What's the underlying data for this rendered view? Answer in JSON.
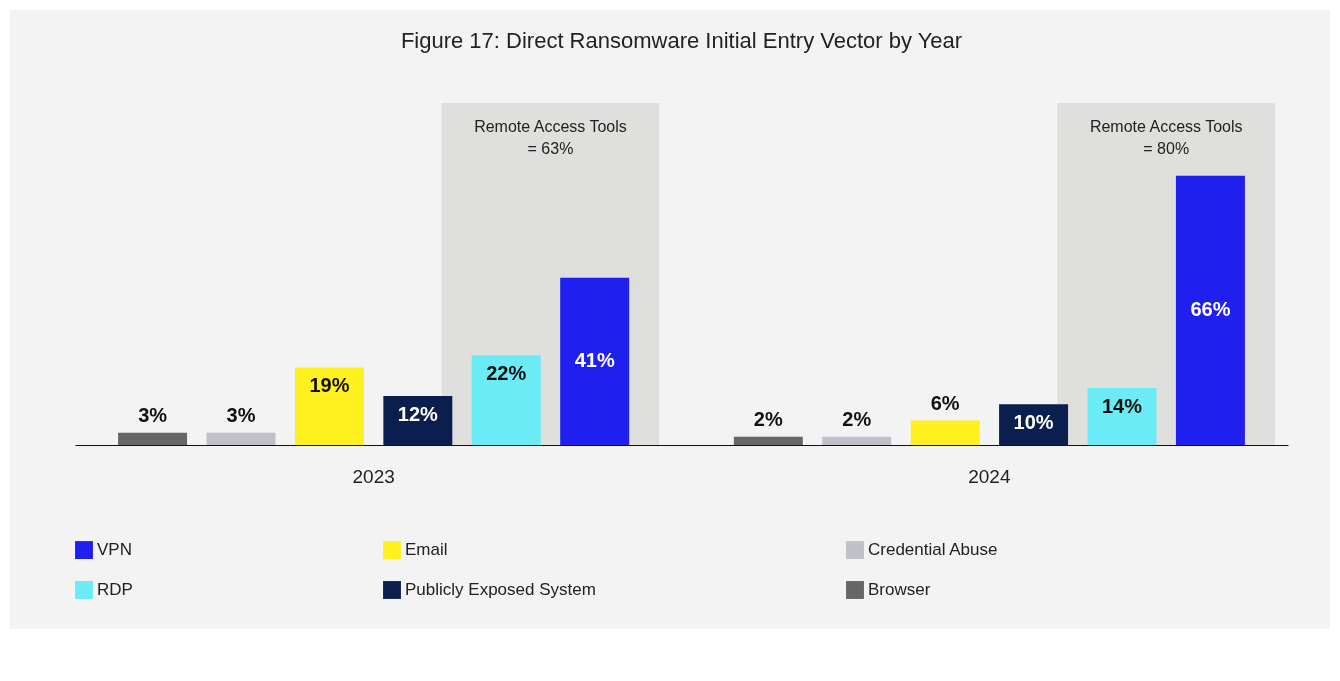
{
  "chart_data": {
    "type": "bar",
    "title": "Figure 17: Direct Ransomware Initial Entry Vector by Year",
    "categories": [
      "2023",
      "2024"
    ],
    "series": [
      {
        "name": "Browser",
        "color": "#666666",
        "values": [
          3,
          2
        ],
        "value_labels": [
          "3%",
          "2%"
        ]
      },
      {
        "name": "Credential Abuse",
        "color": "#c0c0c8",
        "values": [
          3,
          2
        ],
        "value_labels": [
          "3%",
          "2%"
        ]
      },
      {
        "name": "Email",
        "color": "#fff01f",
        "values": [
          19,
          6
        ],
        "value_labels": [
          "19%",
          "6%"
        ]
      },
      {
        "name": "Publicly Exposed System",
        "color": "#0a1f4d",
        "values": [
          12,
          10
        ],
        "value_labels": [
          "12%",
          "10%"
        ]
      },
      {
        "name": "RDP",
        "color": "#6aebf5",
        "values": [
          22,
          14
        ],
        "value_labels": [
          "22%",
          "14%"
        ]
      },
      {
        "name": "VPN",
        "color": "#2020ee",
        "values": [
          41,
          66
        ],
        "value_labels": [
          "41%",
          "66%"
        ]
      }
    ],
    "bands": [
      {
        "axis": "x",
        "from": "2023",
        "to": "2023",
        "label": "Remote Access Tools = 63%",
        "color": "#dfdfdd"
      },
      {
        "axis": "x",
        "from": "2024",
        "to": "2024",
        "label": "Remote Access Tools = 80%",
        "color": "#dfdfdd"
      }
    ],
    "legend": "bottom"
  }
}
